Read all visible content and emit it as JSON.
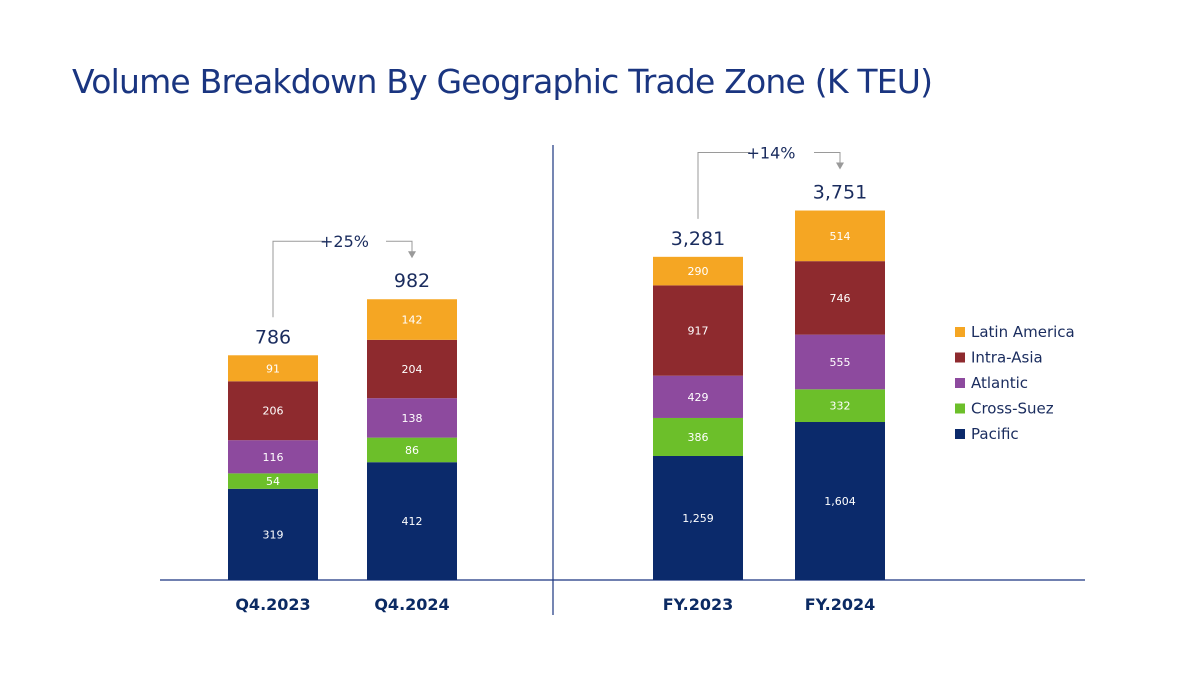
{
  "title": "Volume Breakdown By Geographic Trade Zone (K TEU)",
  "colors": {
    "Pacific": "#0b2a6b",
    "Cross-Suez": "#6cbf2a",
    "Atlantic": "#8d4a9e",
    "Intra-Asia": "#8e2a2e",
    "Latin America": "#f5a623",
    "axis": "#1a3580",
    "connector": "#9a9a9a"
  },
  "chart_data": [
    {
      "type": "bar",
      "stacked": true,
      "title": "",
      "categories": [
        "Q4.2023",
        "Q4.2024"
      ],
      "series": [
        {
          "name": "Pacific",
          "values": [
            319,
            412
          ]
        },
        {
          "name": "Cross-Suez",
          "values": [
            54,
            86
          ]
        },
        {
          "name": "Atlantic",
          "values": [
            116,
            138
          ]
        },
        {
          "name": "Intra-Asia",
          "values": [
            206,
            204
          ]
        },
        {
          "name": "Latin America",
          "values": [
            91,
            142
          ]
        }
      ],
      "value_labels": [
        [
          "319",
          "412"
        ],
        [
          "54",
          "86"
        ],
        [
          "116",
          "138"
        ],
        [
          "206",
          "204"
        ],
        [
          "91",
          "142"
        ]
      ],
      "totals": [
        "786",
        "982"
      ],
      "growth": "+25%"
    },
    {
      "type": "bar",
      "stacked": true,
      "title": "",
      "categories": [
        "FY.2023",
        "FY.2024"
      ],
      "series": [
        {
          "name": "Pacific",
          "values": [
            1259,
            1604
          ]
        },
        {
          "name": "Cross-Suez",
          "values": [
            386,
            332
          ]
        },
        {
          "name": "Atlantic",
          "values": [
            429,
            555
          ]
        },
        {
          "name": "Intra-Asia",
          "values": [
            917,
            746
          ]
        },
        {
          "name": "Latin America",
          "values": [
            290,
            514
          ]
        }
      ],
      "value_labels": [
        [
          "1,259",
          "1,604"
        ],
        [
          "386",
          "332"
        ],
        [
          "429",
          "555"
        ],
        [
          "917",
          "746"
        ],
        [
          "290",
          "514"
        ]
      ],
      "totals": [
        "3,281",
        "3,751"
      ],
      "growth": "+14%"
    }
  ],
  "legend": {
    "placement": "right",
    "items": [
      "Latin America",
      "Intra-Asia",
      "Atlantic",
      "Cross-Suez",
      "Pacific"
    ]
  }
}
